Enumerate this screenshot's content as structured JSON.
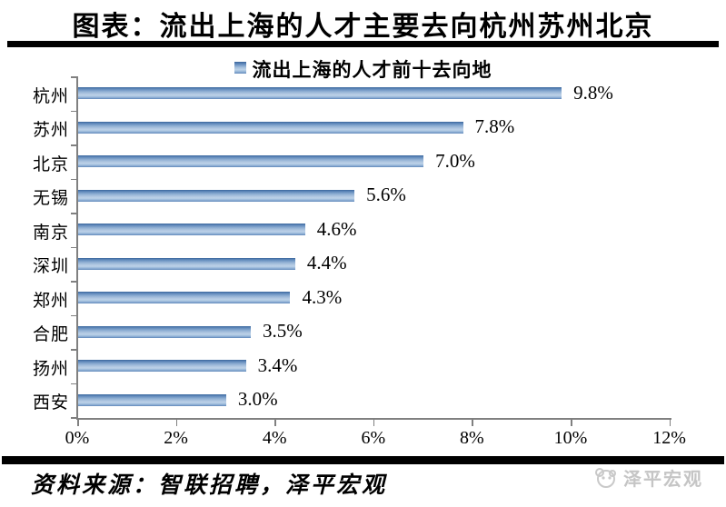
{
  "title": "图表：流出上海的人才主要去向杭州苏州北京",
  "legend": {
    "label": "流出上海的人才前十去向地",
    "marker_color": "#6f97c6"
  },
  "chart_data": {
    "type": "bar",
    "orientation": "horizontal",
    "title": "流出上海的人才前十去向地",
    "categories": [
      "杭州",
      "苏州",
      "北京",
      "无锡",
      "南京",
      "深圳",
      "郑州",
      "合肥",
      "扬州",
      "西安"
    ],
    "values": [
      9.8,
      7.8,
      7.0,
      5.6,
      4.6,
      4.4,
      4.3,
      3.5,
      3.4,
      3.0
    ],
    "value_labels": [
      "9.8%",
      "7.8%",
      "7.0%",
      "5.6%",
      "4.6%",
      "4.4%",
      "4.3%",
      "3.5%",
      "3.4%",
      "3.0%"
    ],
    "x_tick_labels": [
      "0%",
      "2%",
      "4%",
      "6%",
      "8%",
      "10%",
      "12%"
    ],
    "xlim": [
      0,
      12
    ],
    "grid": false,
    "legend_position": "top",
    "bar_color": "#5f87b9",
    "axis_color": "#808080"
  },
  "footer": {
    "source": "资料来源：智联招聘，泽平宏观"
  },
  "logo": {
    "text": "泽平宏观"
  }
}
